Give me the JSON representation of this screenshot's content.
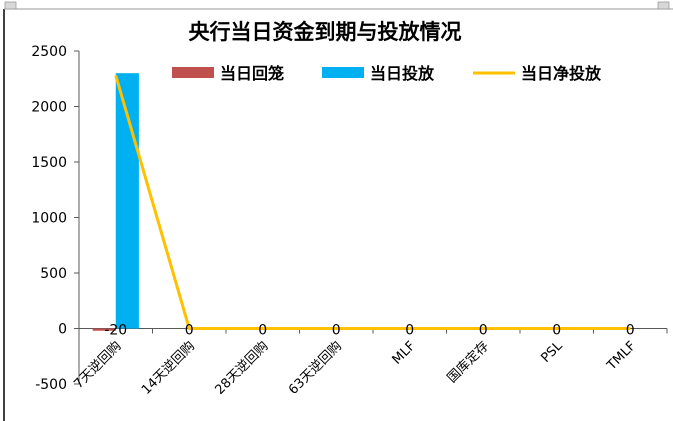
{
  "chart_data": {
    "type": "bar",
    "title": "央行当日资金到期与投放情况",
    "categories": [
      "7天逆回购",
      "14天逆回购",
      "28天逆回购",
      "63天逆回购",
      "MLF",
      "国库定存",
      "PSL",
      "TMLF"
    ],
    "series": [
      {
        "name": "当日回笼",
        "kind": "bar",
        "color": "#c0504d",
        "values": [
          -20,
          0,
          0,
          0,
          0,
          0,
          0,
          0
        ]
      },
      {
        "name": "当日投放",
        "kind": "bar",
        "color": "#00b0f0",
        "values": [
          2300,
          0,
          0,
          0,
          0,
          0,
          0,
          0
        ]
      },
      {
        "name": "当日净投放",
        "kind": "line",
        "color": "#ffc000",
        "values": [
          2280,
          0,
          0,
          0,
          0,
          0,
          0,
          0
        ]
      }
    ],
    "data_labels": [
      "-20",
      "0",
      "0",
      "0",
      "0",
      "0",
      "0",
      "0"
    ],
    "yticks": [
      -500,
      0,
      500,
      1000,
      1500,
      2000,
      2500
    ],
    "ylim": [
      -500,
      2500
    ],
    "legend_position": "top",
    "grid": false
  }
}
